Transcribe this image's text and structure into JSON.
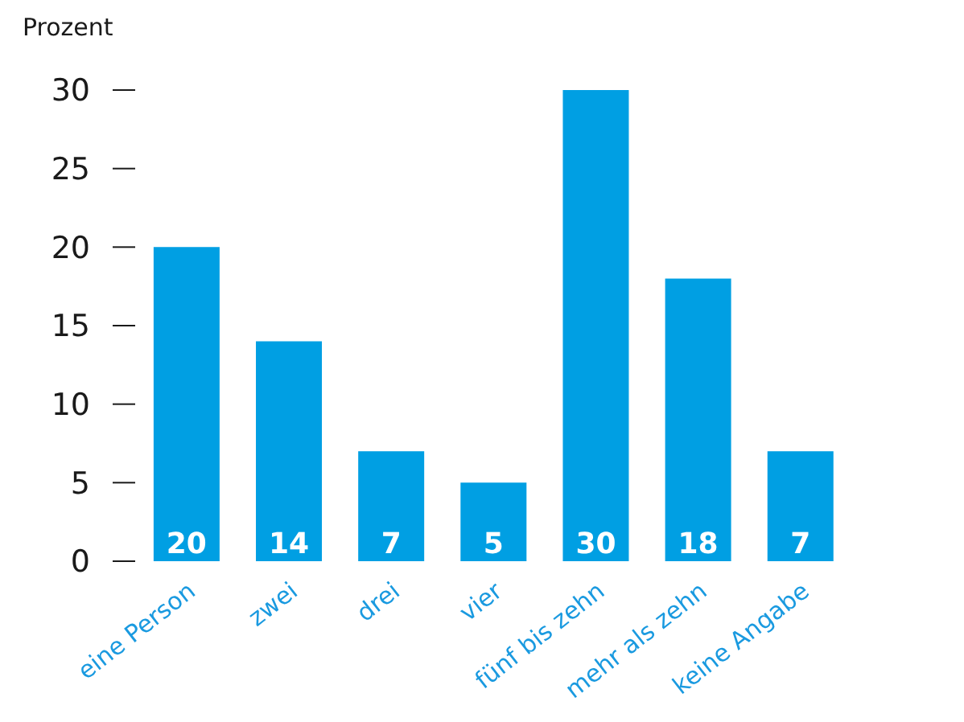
{
  "chart_data": {
    "type": "bar",
    "ylabel": "Prozent",
    "categories": [
      "eine Person",
      "zwei",
      "drei",
      "vier",
      "fünf bis zehn",
      "mehr als zehn",
      "keine Angabe"
    ],
    "values": [
      20,
      14,
      7,
      5,
      30,
      18,
      7
    ],
    "color": "#009fe3",
    "ylim": [
      0,
      30
    ],
    "yticks": [
      0,
      5,
      10,
      15,
      20,
      25,
      30
    ],
    "grid": false,
    "data_labels": true
  }
}
